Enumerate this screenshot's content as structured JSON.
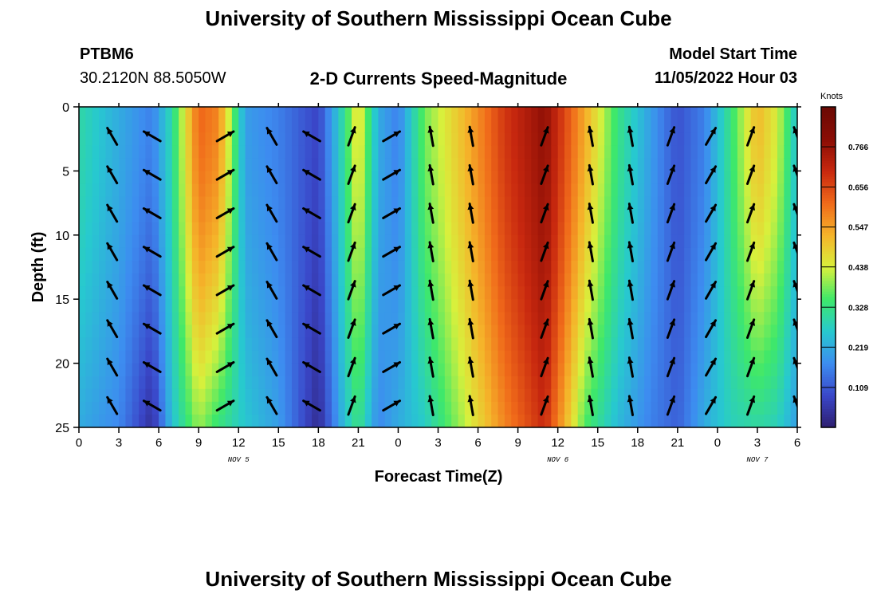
{
  "header": {
    "title": "University of Southern Mississippi Ocean Cube",
    "station_id": "PTBM6",
    "station_coords": "30.2120N  88.5050W",
    "plot_title": "2-D Currents Speed-Magnitude",
    "model_start_label": "Model Start Time",
    "model_start_value": "11/05/2022 Hour 03"
  },
  "footer": {
    "title": "University of Southern Mississippi Ocean Cube"
  },
  "chart_data": {
    "type": "heatmap",
    "title": "2-D Currents Speed-Magnitude",
    "xlabel": "Forecast Time(Z)",
    "ylabel": "Depth (ft)",
    "x_ticks": [
      "0",
      "3",
      "6",
      "9",
      "12",
      "15",
      "18",
      "21",
      "0",
      "3",
      "6",
      "9",
      "12",
      "15",
      "18",
      "21",
      "0",
      "3",
      "6"
    ],
    "x_range_hours": [
      0,
      54
    ],
    "date_labels": [
      {
        "hour": 12,
        "label": "NOV 5"
      },
      {
        "hour": 36,
        "label": "NOV 6"
      },
      {
        "hour": 51,
        "label": "NOV 7"
      }
    ],
    "y_ticks": [
      0,
      5,
      10,
      15,
      20,
      25
    ],
    "ylim": [
      0,
      25
    ],
    "colorbar": {
      "title": "Knots",
      "ticks": [
        "0.766",
        "0.656",
        "0.547",
        "0.438",
        "0.328",
        "0.219",
        "0.109"
      ],
      "range": [
        0.0,
        0.875
      ],
      "colors": [
        "#2d1e6e",
        "#3a47c9",
        "#3d8cf0",
        "#27c9cf",
        "#3ee86a",
        "#d8f03c",
        "#f5b42a",
        "#f06a1a",
        "#c8280f",
        "#8a0d05",
        "#6b0a04"
      ]
    },
    "speed_profile_knots": [
      {
        "hour": 0,
        "top": 0.3,
        "bottom": 0.22
      },
      {
        "hour": 3,
        "top": 0.22,
        "bottom": 0.17
      },
      {
        "hour": 5.5,
        "top": 0.16,
        "bottom": 0.04
      },
      {
        "hour": 7,
        "top": 0.3,
        "bottom": 0.25
      },
      {
        "hour": 9,
        "top": 0.62,
        "bottom": 0.4
      },
      {
        "hour": 10.5,
        "top": 0.58,
        "bottom": 0.33
      },
      {
        "hour": 12.5,
        "top": 0.2,
        "bottom": 0.26
      },
      {
        "hour": 15,
        "top": 0.16,
        "bottom": 0.2
      },
      {
        "hour": 18,
        "top": 0.08,
        "bottom": 0.03
      },
      {
        "hour": 20,
        "top": 0.32,
        "bottom": 0.25
      },
      {
        "hour": 21,
        "top": 0.48,
        "bottom": 0.33
      },
      {
        "hour": 22.5,
        "top": 0.22,
        "bottom": 0.17
      },
      {
        "hour": 24,
        "top": 0.16,
        "bottom": 0.22
      },
      {
        "hour": 26,
        "top": 0.38,
        "bottom": 0.27
      },
      {
        "hour": 29,
        "top": 0.52,
        "bottom": 0.42
      },
      {
        "hour": 32,
        "top": 0.68,
        "bottom": 0.58
      },
      {
        "hour": 35,
        "top": 0.78,
        "bottom": 0.7
      },
      {
        "hour": 38,
        "top": 0.54,
        "bottom": 0.36
      },
      {
        "hour": 40.5,
        "top": 0.33,
        "bottom": 0.24
      },
      {
        "hour": 43,
        "top": 0.2,
        "bottom": 0.16
      },
      {
        "hour": 45,
        "top": 0.1,
        "bottom": 0.12
      },
      {
        "hour": 47,
        "top": 0.16,
        "bottom": 0.22
      },
      {
        "hour": 49,
        "top": 0.33,
        "bottom": 0.28
      },
      {
        "hour": 51,
        "top": 0.52,
        "bottom": 0.3
      },
      {
        "hour": 52.5,
        "top": 0.44,
        "bottom": 0.28
      },
      {
        "hour": 54,
        "top": 0.25,
        "bottom": 0.2
      }
    ],
    "vector_hours": [
      2.5,
      5.5,
      11,
      14.5,
      17.5,
      20.5,
      23.5,
      26.5,
      29.5,
      35,
      38.5,
      41.5,
      44.5,
      47.5,
      50.5,
      54
    ],
    "vector_depths_ft": [
      2.3,
      5.3,
      8.3,
      11.3,
      14.3,
      17.3,
      20.3,
      23.3
    ],
    "vector_direction_deg": [
      330,
      300,
      60,
      330,
      300,
      20,
      60,
      350,
      350,
      20,
      350,
      350,
      20,
      30,
      20,
      340
    ]
  }
}
